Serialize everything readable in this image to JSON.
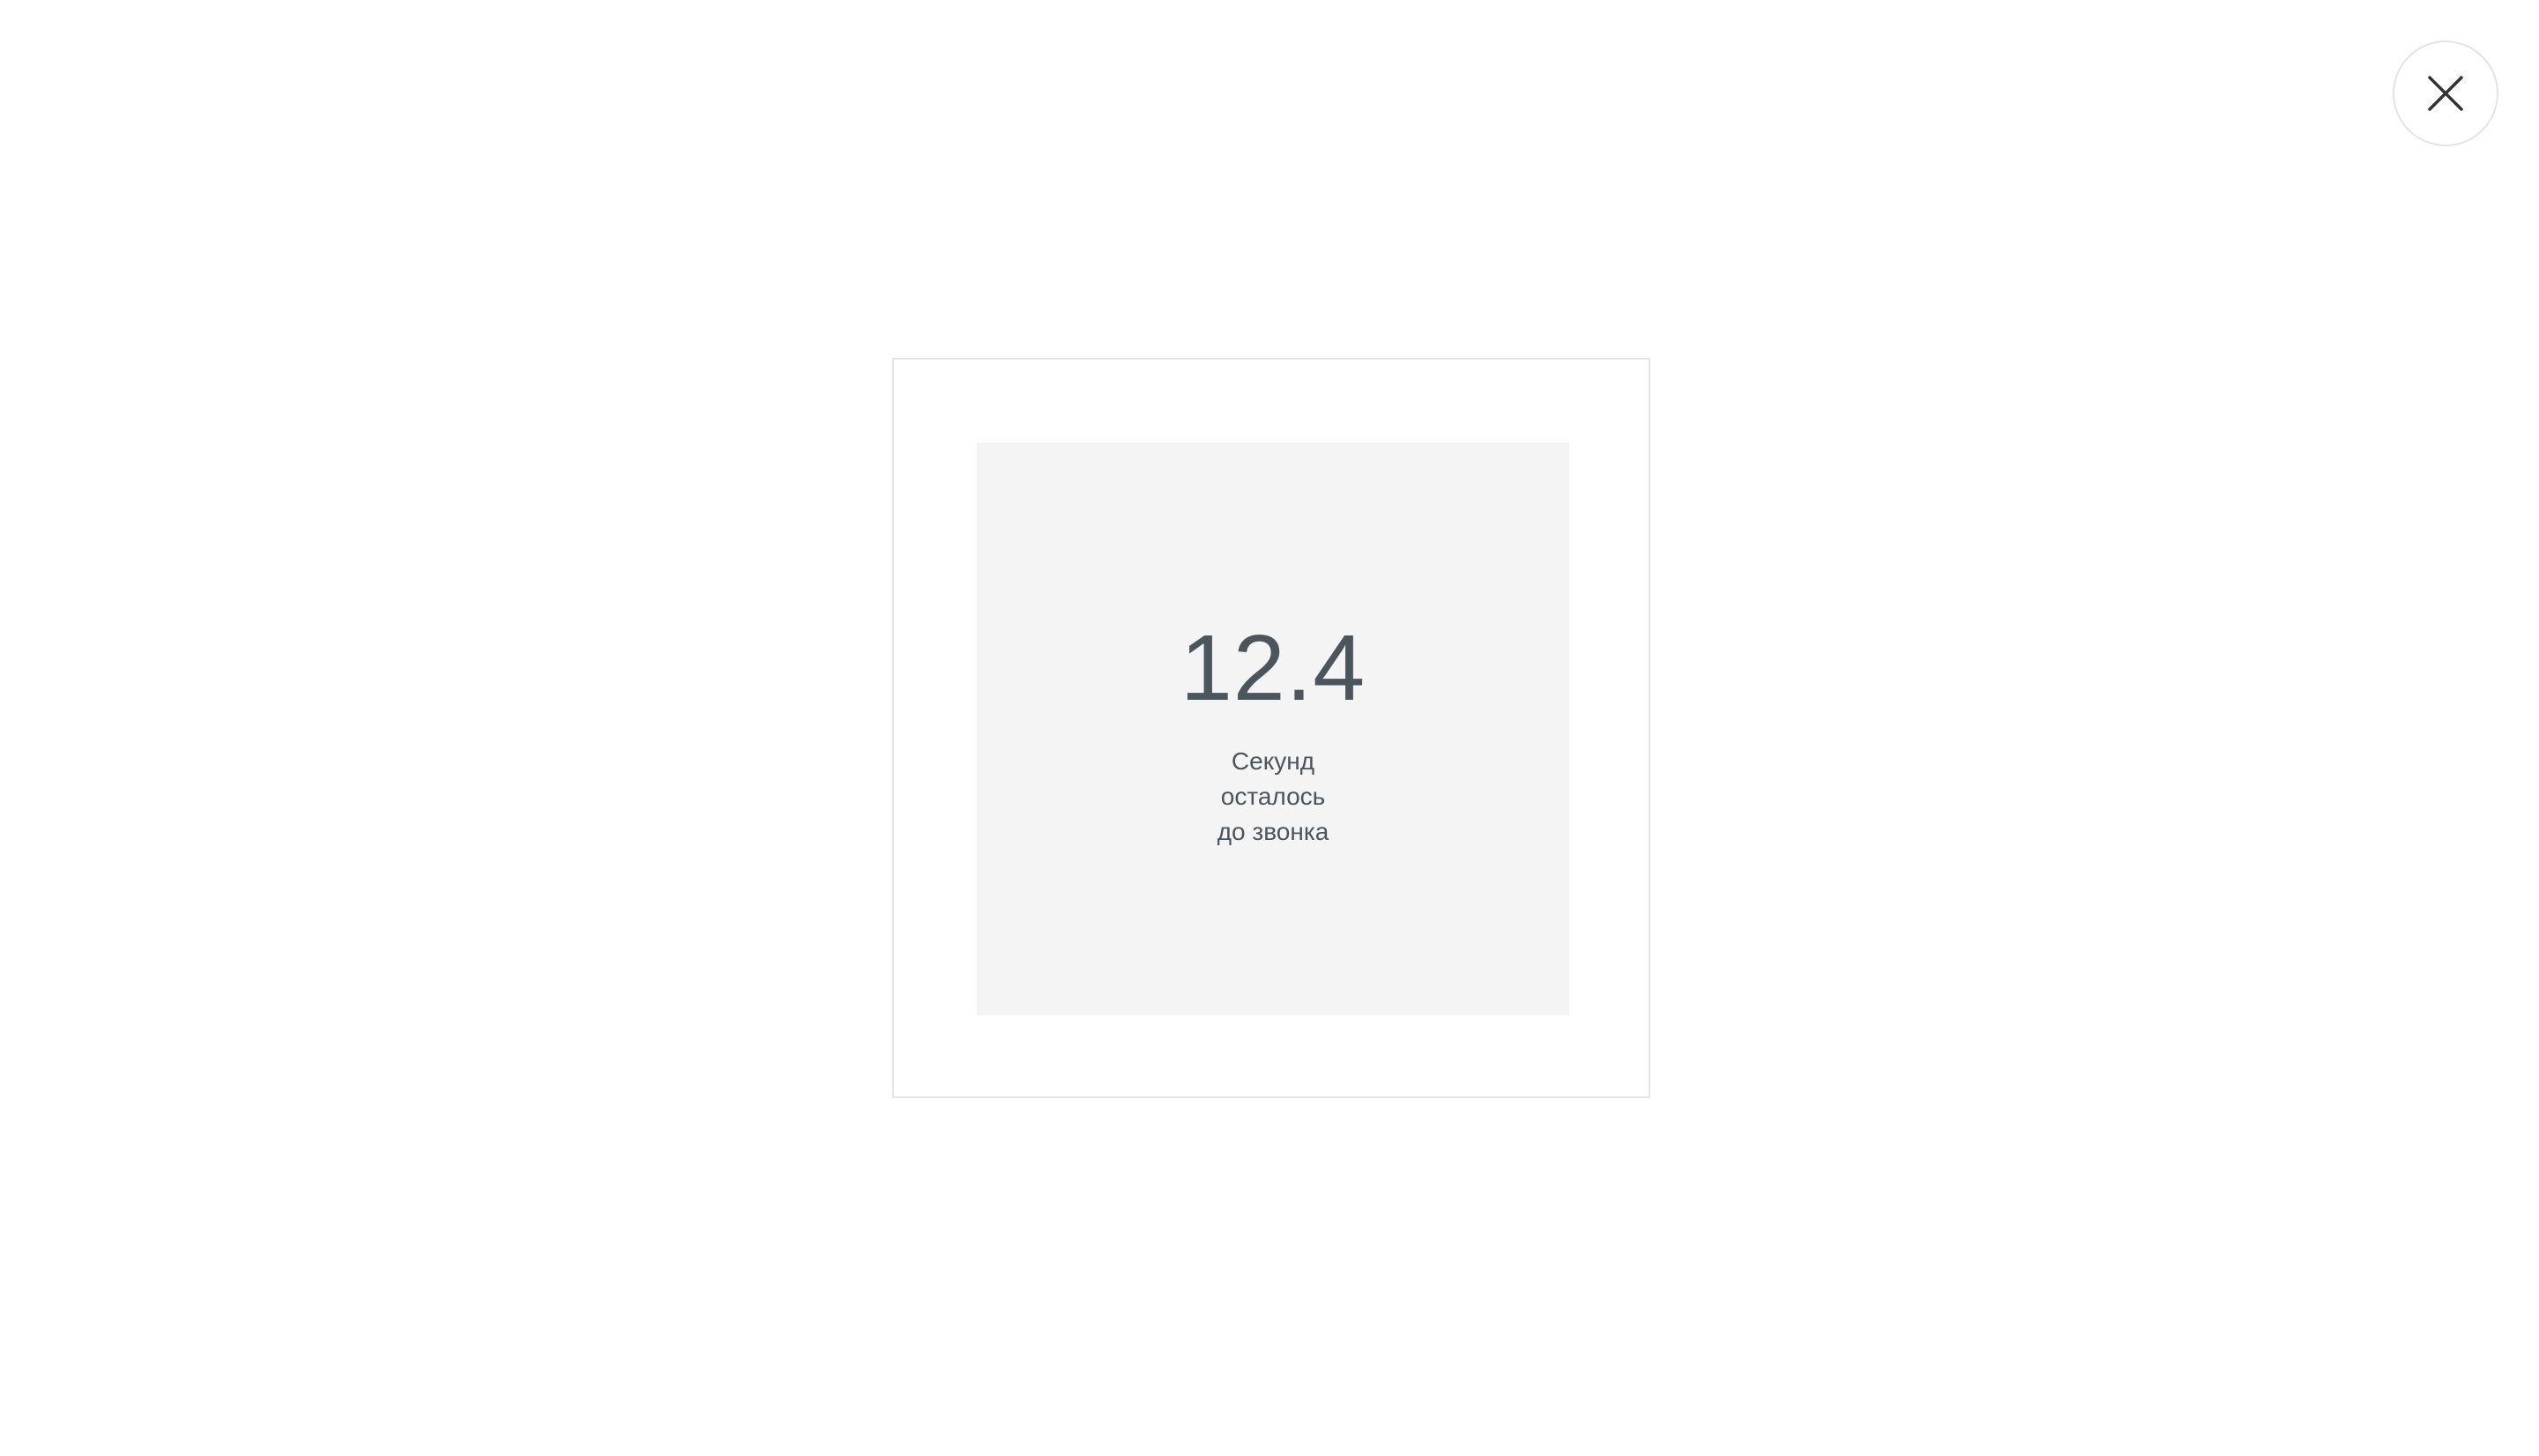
{
  "close_button": {
    "icon": "close-icon",
    "icon_color": "#333333"
  },
  "countdown": {
    "value": "12.4",
    "caption_lines": [
      "Секунд",
      "осталось",
      "до звонка"
    ],
    "text_color": "#4a555d",
    "panel_color": "#f4f4f4"
  }
}
